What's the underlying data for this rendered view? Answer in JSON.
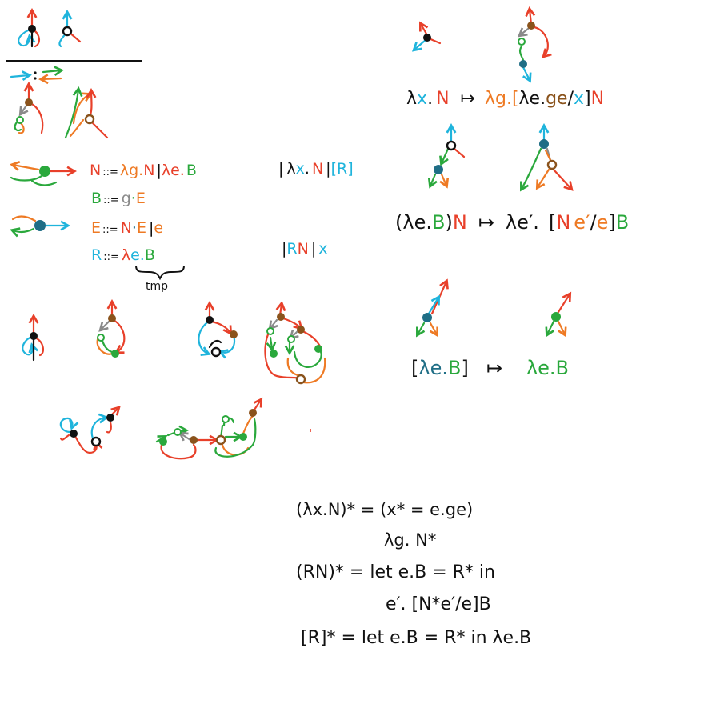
{
  "colors": {
    "red": "#e8402a",
    "cyan": "#1fb4dc",
    "green": "#2aa83c",
    "orange": "#ee7a24",
    "brown": "#8a531c",
    "teal": "#1f6e86",
    "black": "#111111",
    "grey": "#8a8a8a"
  },
  "grammar": {
    "N": {
      "lhs": "N",
      "sep": "::=",
      "p1": "λg.",
      "p2": "N",
      "bar": "|",
      "p3": "λe.",
      "p4": "B"
    },
    "B": {
      "lhs": "B",
      "sep": "::=",
      "p1": "g",
      "p2": "·",
      "p3": "E"
    },
    "E": {
      "lhs": "E",
      "sep": "::=",
      "p1": "N",
      "p2": "·",
      "p3": "E",
      "bar": "|",
      "p4": "e"
    },
    "R": {
      "lhs": "R",
      "sep": "::=",
      "p1": "λ",
      "p2": "e.",
      "p3": "B"
    },
    "tmp": "tmp",
    "alt1": {
      "bar1": "|",
      "lam": "λ",
      "x": "x",
      "dot": ".",
      "n": "N",
      "bar2": "|",
      "br": "[R]"
    },
    "alt2": {
      "bar1": "|",
      "r": "R",
      "n": "N",
      "bar2": "|",
      "x": "x"
    }
  },
  "rules": {
    "r1": {
      "lam": "λ",
      "x": "x",
      "dot": ".",
      "n": "N",
      "arrow": "↦",
      "lg": "λg.[",
      "le": "λe.",
      "ge": "ge",
      "slash": "/",
      "x2": "x",
      "close": "]",
      "n2": "N"
    },
    "r2": {
      "open": "(",
      "le": "λe.",
      "b": "B",
      "close": ")",
      "n": "N",
      "arrow": "↦",
      "le2": "λe′.",
      "bopen": "[",
      "n2": "N",
      "e1": "e′",
      "slash": "/",
      "e2": "e",
      "bclose": "]",
      "b2": "B"
    },
    "r3": {
      "open": "[",
      "le": "λe.",
      "b": "B",
      "close": "]",
      "arrow": "↦",
      "le2": "λe.",
      "b2": "B"
    }
  },
  "translation": {
    "line1": "(λx.N)* = (x* = e.ge)",
    "line2": "λg. N*",
    "line3": "(RN)* = let e.B = R* in",
    "line4": "e′. [N*e′/e]B",
    "line5": "[R]* = let e.B = R* in λe.B"
  }
}
